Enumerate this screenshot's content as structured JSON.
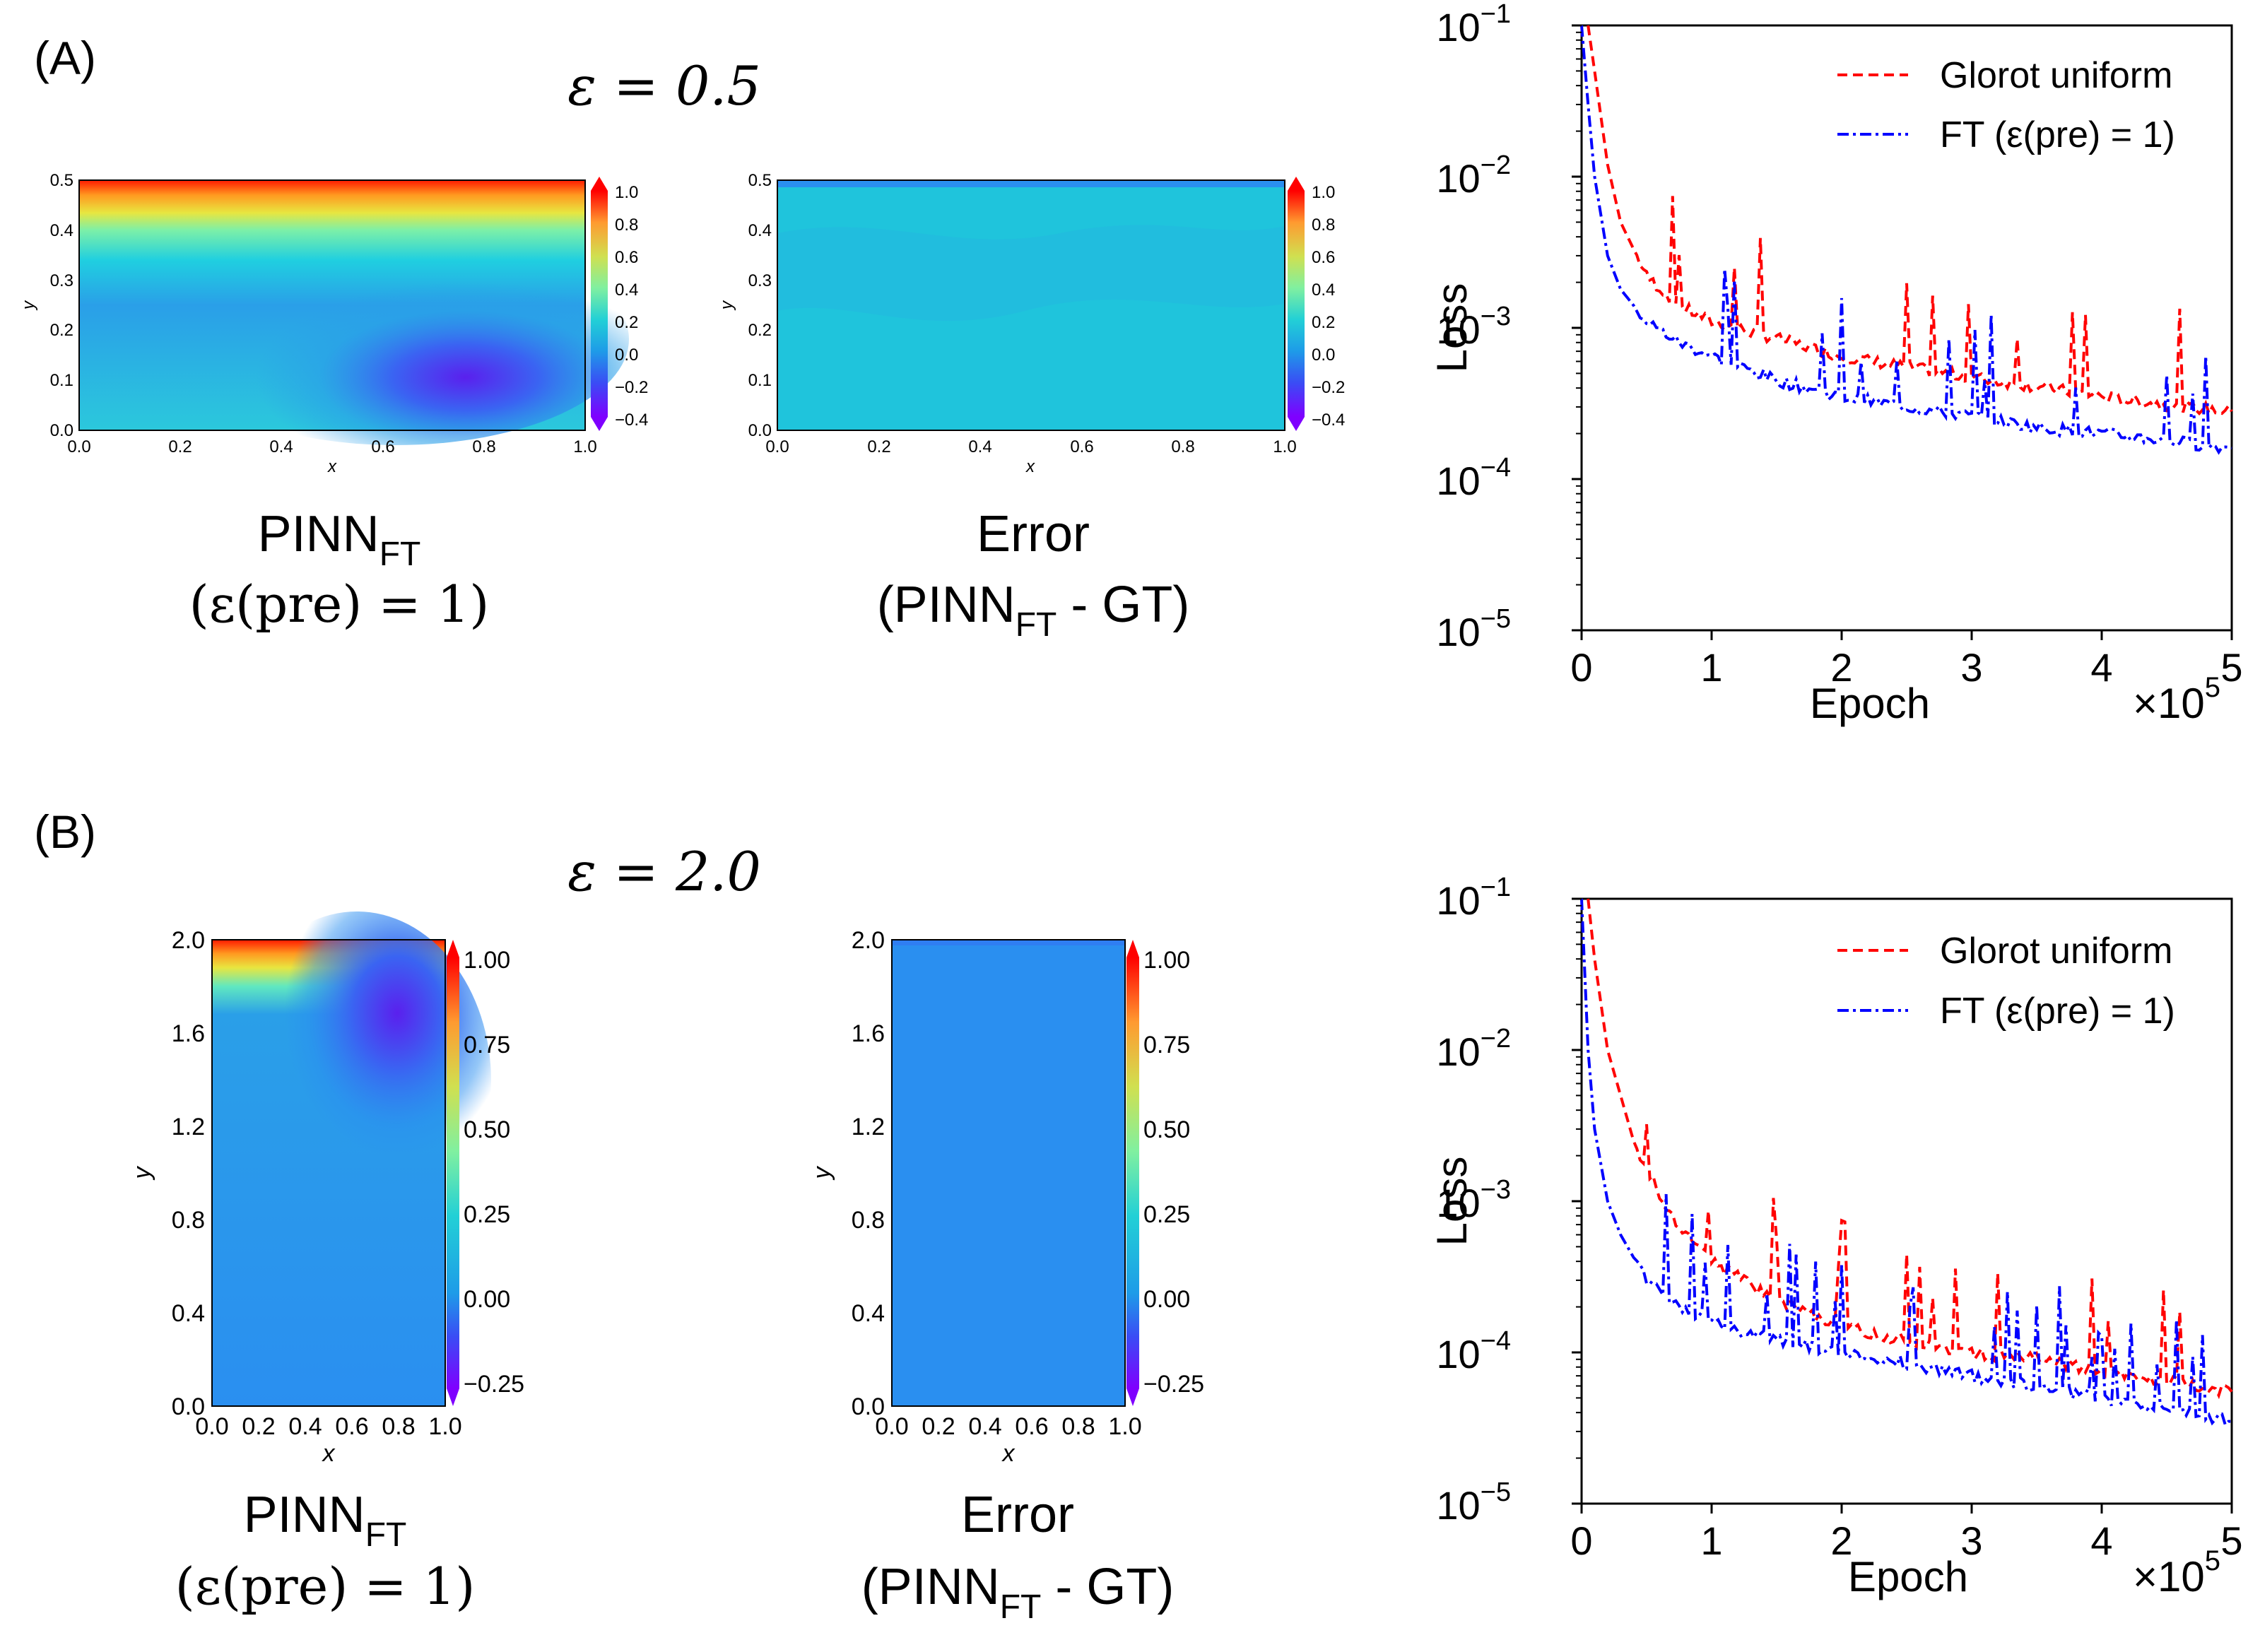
{
  "panels": [
    {
      "label": "(A)",
      "eps_title": "ε = 0.5",
      "field": {
        "ticks_x": [
          "0.0",
          "0.2",
          "0.4",
          "0.6",
          "0.8",
          "1.0"
        ],
        "ticks_y": [
          "0.0",
          "0.1",
          "0.2",
          "0.3",
          "0.4",
          "0.5"
        ],
        "xlabel": "x",
        "ylabel": "y",
        "cbar_ticks": [
          "1.0",
          "0.8",
          "0.6",
          "0.4",
          "0.2",
          "0.0",
          "−0.2",
          "−0.4"
        ]
      },
      "captions": {
        "left_main": "PINN",
        "left_sub": "FT",
        "left_line2": "(ε(pre) = 1)",
        "right_line1": "Error",
        "right_main": "(PINN",
        "right_sub": "FT",
        "right_tail": " - GT)"
      },
      "loss": {
        "ylabel": "Loss",
        "xlabel": "Epoch",
        "yticks": [
          "10",
          "10",
          "10",
          "10",
          "10"
        ],
        "yexp": [
          "−1",
          "−2",
          "−3",
          "−4",
          "−5"
        ],
        "xticks": [
          "0",
          "1",
          "2",
          "3",
          "4",
          "5"
        ],
        "xmult": "×10",
        "xmult_exp": "5",
        "legend": [
          {
            "name": "Glorot uniform",
            "color": "#ff0000"
          },
          {
            "name": "FT (ε(pre) = 1)",
            "color": "#0000ff"
          }
        ]
      }
    },
    {
      "label": "(B)",
      "eps_title": "ε = 2.0",
      "field": {
        "ticks_x": [
          "0.0",
          "0.2",
          "0.4",
          "0.6",
          "0.8",
          "1.0"
        ],
        "ticks_y": [
          "0.0",
          "0.4",
          "0.8",
          "1.2",
          "1.6",
          "2.0"
        ],
        "xlabel": "x",
        "ylabel": "y",
        "cbar_ticks": [
          "1.00",
          "0.75",
          "0.50",
          "0.25",
          "0.00",
          "−0.25"
        ]
      },
      "captions": {
        "left_main": "PINN",
        "left_sub": "FT",
        "left_line2": "(ε(pre) = 1)",
        "right_line1": "Error",
        "right_main": "(PINN",
        "right_sub": "FT",
        "right_tail": " - GT)"
      },
      "loss": {
        "ylabel": "Loss",
        "xlabel": "Epoch",
        "yticks": [
          "10",
          "10",
          "10",
          "10",
          "10"
        ],
        "yexp": [
          "−1",
          "−2",
          "−3",
          "−4",
          "−5"
        ],
        "xticks": [
          "0",
          "1",
          "2",
          "3",
          "4",
          "5"
        ],
        "xmult": "×10",
        "xmult_exp": "5",
        "legend": [
          {
            "name": "Glorot uniform",
            "color": "#ff0000"
          },
          {
            "name": "FT (ε(pre) = 1)",
            "color": "#0000ff"
          }
        ]
      }
    }
  ],
  "chart_data": [
    {
      "type": "line",
      "panel": "A",
      "xlabel": "Epoch",
      "ylabel": "Loss",
      "xlim": [
        0,
        500000
      ],
      "ylim": [
        1e-05,
        0.1
      ],
      "yscale": "log",
      "legend_placement": "top-right",
      "series": [
        {
          "name": "Glorot uniform",
          "color": "#ff0000",
          "style": "dashed",
          "x": [
            5000,
            10000,
            20000,
            30000,
            50000,
            75000,
            100000,
            150000,
            200000,
            250000,
            300000,
            350000,
            400000,
            450000,
            500000
          ],
          "y": [
            0.1,
            0.05,
            0.012,
            0.005,
            0.0022,
            0.0014,
            0.0011,
            0.00085,
            0.00065,
            0.00055,
            0.00047,
            0.00041,
            0.00035,
            0.00031,
            0.00028
          ]
        },
        {
          "name": "FT (ε(pre) = 1)",
          "color": "#0000ff",
          "style": "dashdot",
          "x": [
            0,
            5000,
            10000,
            20000,
            30000,
            50000,
            75000,
            100000,
            150000,
            200000,
            250000,
            300000,
            350000,
            400000,
            450000,
            500000
          ],
          "y": [
            0.1,
            0.03,
            0.01,
            0.003,
            0.0018,
            0.0011,
            0.0008,
            0.00065,
            0.00045,
            0.00035,
            0.0003,
            0.00026,
            0.00022,
            0.0002,
            0.00018,
            0.00016
          ]
        }
      ]
    },
    {
      "type": "line",
      "panel": "B",
      "xlabel": "Epoch",
      "ylabel": "Loss",
      "xlim": [
        0,
        500000
      ],
      "ylim": [
        1e-05,
        0.1
      ],
      "yscale": "log",
      "legend_placement": "top-right",
      "series": [
        {
          "name": "Glorot uniform",
          "color": "#ff0000",
          "style": "dashed",
          "x": [
            5000,
            10000,
            20000,
            40000,
            60000,
            80000,
            100000,
            150000,
            200000,
            250000,
            300000,
            350000,
            400000,
            450000,
            500000
          ],
          "y": [
            0.1,
            0.04,
            0.01,
            0.0025,
            0.0011,
            0.0006,
            0.0004,
            0.00022,
            0.00015,
            0.00012,
            0.0001,
            9e-05,
            7.5e-05,
            6.5e-05,
            5.5e-05
          ]
        },
        {
          "name": "FT (ε(pre) = 1)",
          "color": "#0000ff",
          "style": "dashdot",
          "x": [
            0,
            5000,
            10000,
            20000,
            30000,
            50000,
            75000,
            100000,
            150000,
            200000,
            250000,
            300000,
            350000,
            400000,
            450000,
            500000
          ],
          "y": [
            0.1,
            0.01,
            0.003,
            0.001,
            0.0006,
            0.0003,
            0.0002,
            0.00016,
            0.00012,
            0.0001,
            8.5e-05,
            7e-05,
            6e-05,
            5e-05,
            4.2e-05,
            3.5e-05
          ]
        }
      ]
    }
  ]
}
